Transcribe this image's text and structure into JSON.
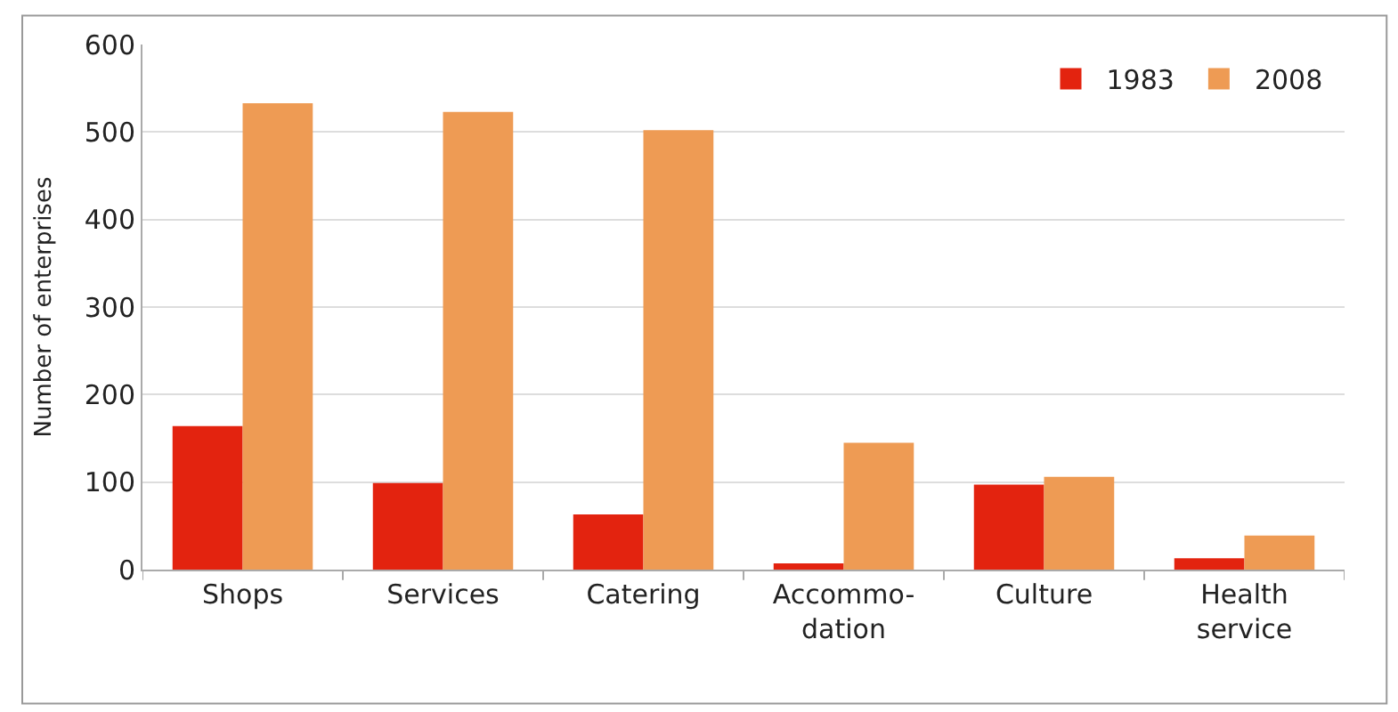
{
  "chart_data": {
    "type": "bar",
    "ylabel": "Number of enterprises",
    "categories": [
      "Shops",
      "Services",
      "Catering",
      "Accommo-\ndation",
      "Culture",
      "Health\nservice"
    ],
    "series": [
      {
        "name": "1983",
        "color": "#e3230f",
        "values": [
          164,
          99,
          63,
          7,
          97,
          13
        ]
      },
      {
        "name": "2008",
        "color": "#ee9b54",
        "values": [
          533,
          523,
          502,
          145,
          106,
          39
        ]
      }
    ],
    "ylim": [
      0,
      600
    ],
    "yticks": [
      0,
      100,
      200,
      300,
      400,
      500,
      600
    ],
    "grid": "y",
    "legend": "top right"
  }
}
